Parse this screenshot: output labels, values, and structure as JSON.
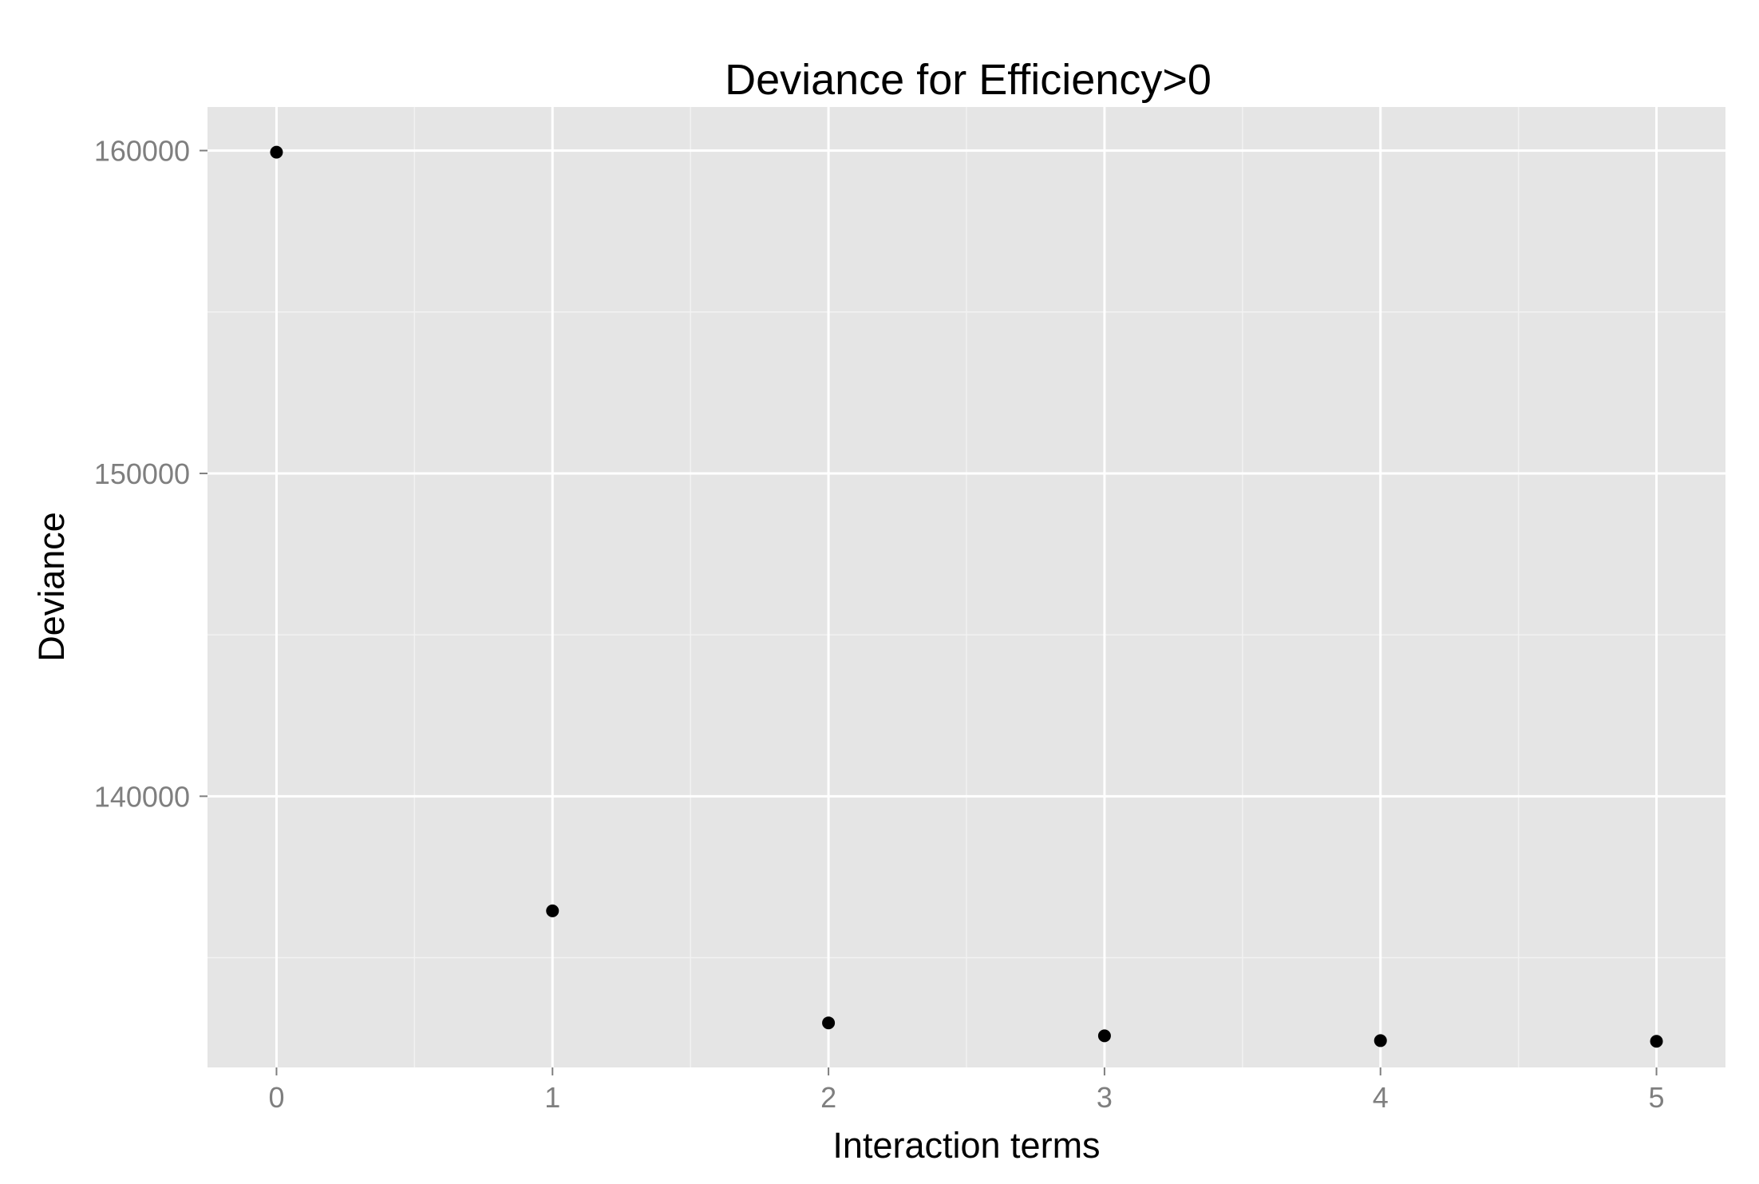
{
  "chart_data": {
    "type": "scatter",
    "title": "Deviance for Efficiency>0",
    "xlabel": "Interaction terms",
    "ylabel": "Deviance",
    "x": [
      0,
      1,
      2,
      3,
      4,
      5
    ],
    "y": [
      159950,
      136450,
      132980,
      132580,
      132430,
      132410
    ],
    "xlim": [
      -0.25,
      5.25
    ],
    "ylim": [
      131600,
      161350
    ],
    "x_ticks": [
      0,
      1,
      2,
      3,
      4,
      5
    ],
    "x_tick_labels": [
      "0",
      "1",
      "2",
      "3",
      "4",
      "5"
    ],
    "y_ticks": [
      140000,
      150000,
      160000
    ],
    "y_tick_labels": [
      "140000",
      "150000",
      "160000"
    ],
    "grid": true,
    "legend": "none",
    "colors": {
      "panel_background": "#e5e5e5",
      "grid_major": "#ffffff",
      "grid_minor": "#f2f2f2",
      "point": "#000000",
      "tick_label": "#7f7f7f"
    }
  }
}
